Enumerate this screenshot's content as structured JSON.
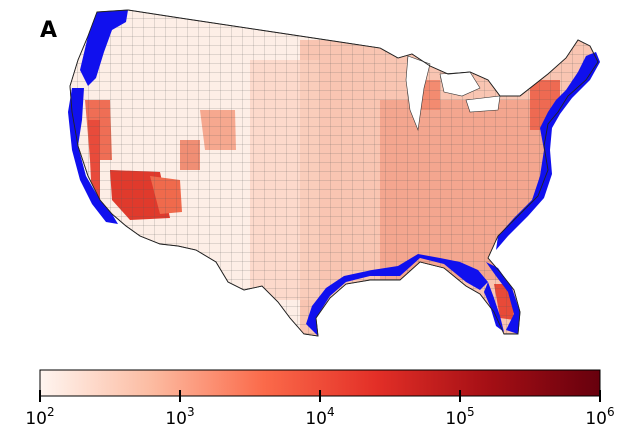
{
  "panel_label": "A",
  "colorbar": {
    "scale": "log",
    "min": 100,
    "max": 1000000,
    "colors": [
      "#fff5f0",
      "#fcbba1",
      "#fb6a4a",
      "#e32f27",
      "#a50f15",
      "#67000d"
    ],
    "ticks": [
      {
        "base": "10",
        "exp": "2"
      },
      {
        "base": "10",
        "exp": "3"
      },
      {
        "base": "10",
        "exp": "4"
      },
      {
        "base": "10",
        "exp": "5"
      },
      {
        "base": "10",
        "exp": "6"
      }
    ]
  },
  "map": {
    "land_color": "#fde0d2",
    "coastal_highlight_color": "#1010ee",
    "border_color": "#333333"
  }
}
